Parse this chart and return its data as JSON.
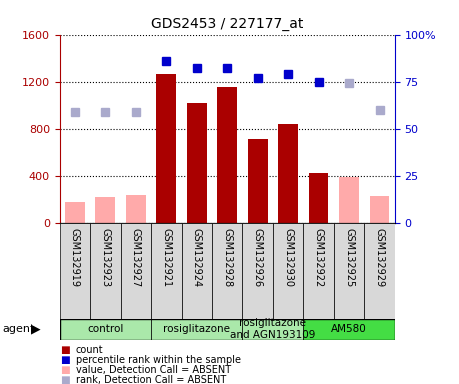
{
  "title": "GDS2453 / 227177_at",
  "samples": [
    "GSM132919",
    "GSM132923",
    "GSM132927",
    "GSM132921",
    "GSM132924",
    "GSM132928",
    "GSM132926",
    "GSM132930",
    "GSM132922",
    "GSM132925",
    "GSM132929"
  ],
  "bar_values": [
    175,
    215,
    235,
    1265,
    1020,
    1150,
    710,
    840,
    420,
    390,
    230
  ],
  "absent_flags": [
    true,
    true,
    true,
    false,
    false,
    false,
    false,
    false,
    false,
    true,
    true
  ],
  "blue_squares_pct": [
    null,
    null,
    null,
    86,
    82,
    82,
    77,
    79,
    75,
    null,
    null
  ],
  "light_blue_squares_pct": [
    59,
    59,
    59,
    null,
    null,
    null,
    null,
    null,
    null,
    74,
    60
  ],
  "groups": [
    {
      "label": "control",
      "start": 0,
      "end": 3,
      "color": "#aae8aa"
    },
    {
      "label": "rosiglitazone",
      "start": 3,
      "end": 6,
      "color": "#aae8aa"
    },
    {
      "label": "rosiglitazone\nand AGN193109",
      "start": 6,
      "end": 8,
      "color": "#aae8aa"
    },
    {
      "label": "AM580",
      "start": 8,
      "end": 11,
      "color": "#44dd44"
    }
  ],
  "ylim_left": [
    0,
    1600
  ],
  "ylim_right": [
    0,
    100
  ],
  "left_ticks": [
    0,
    400,
    800,
    1200,
    1600
  ],
  "right_ticks": [
    0,
    25,
    50,
    75,
    100
  ],
  "bar_color_present": "#aa0000",
  "bar_color_absent": "#ffaaaa",
  "blue_color": "#0000cc",
  "light_blue_color": "#aaaacc"
}
